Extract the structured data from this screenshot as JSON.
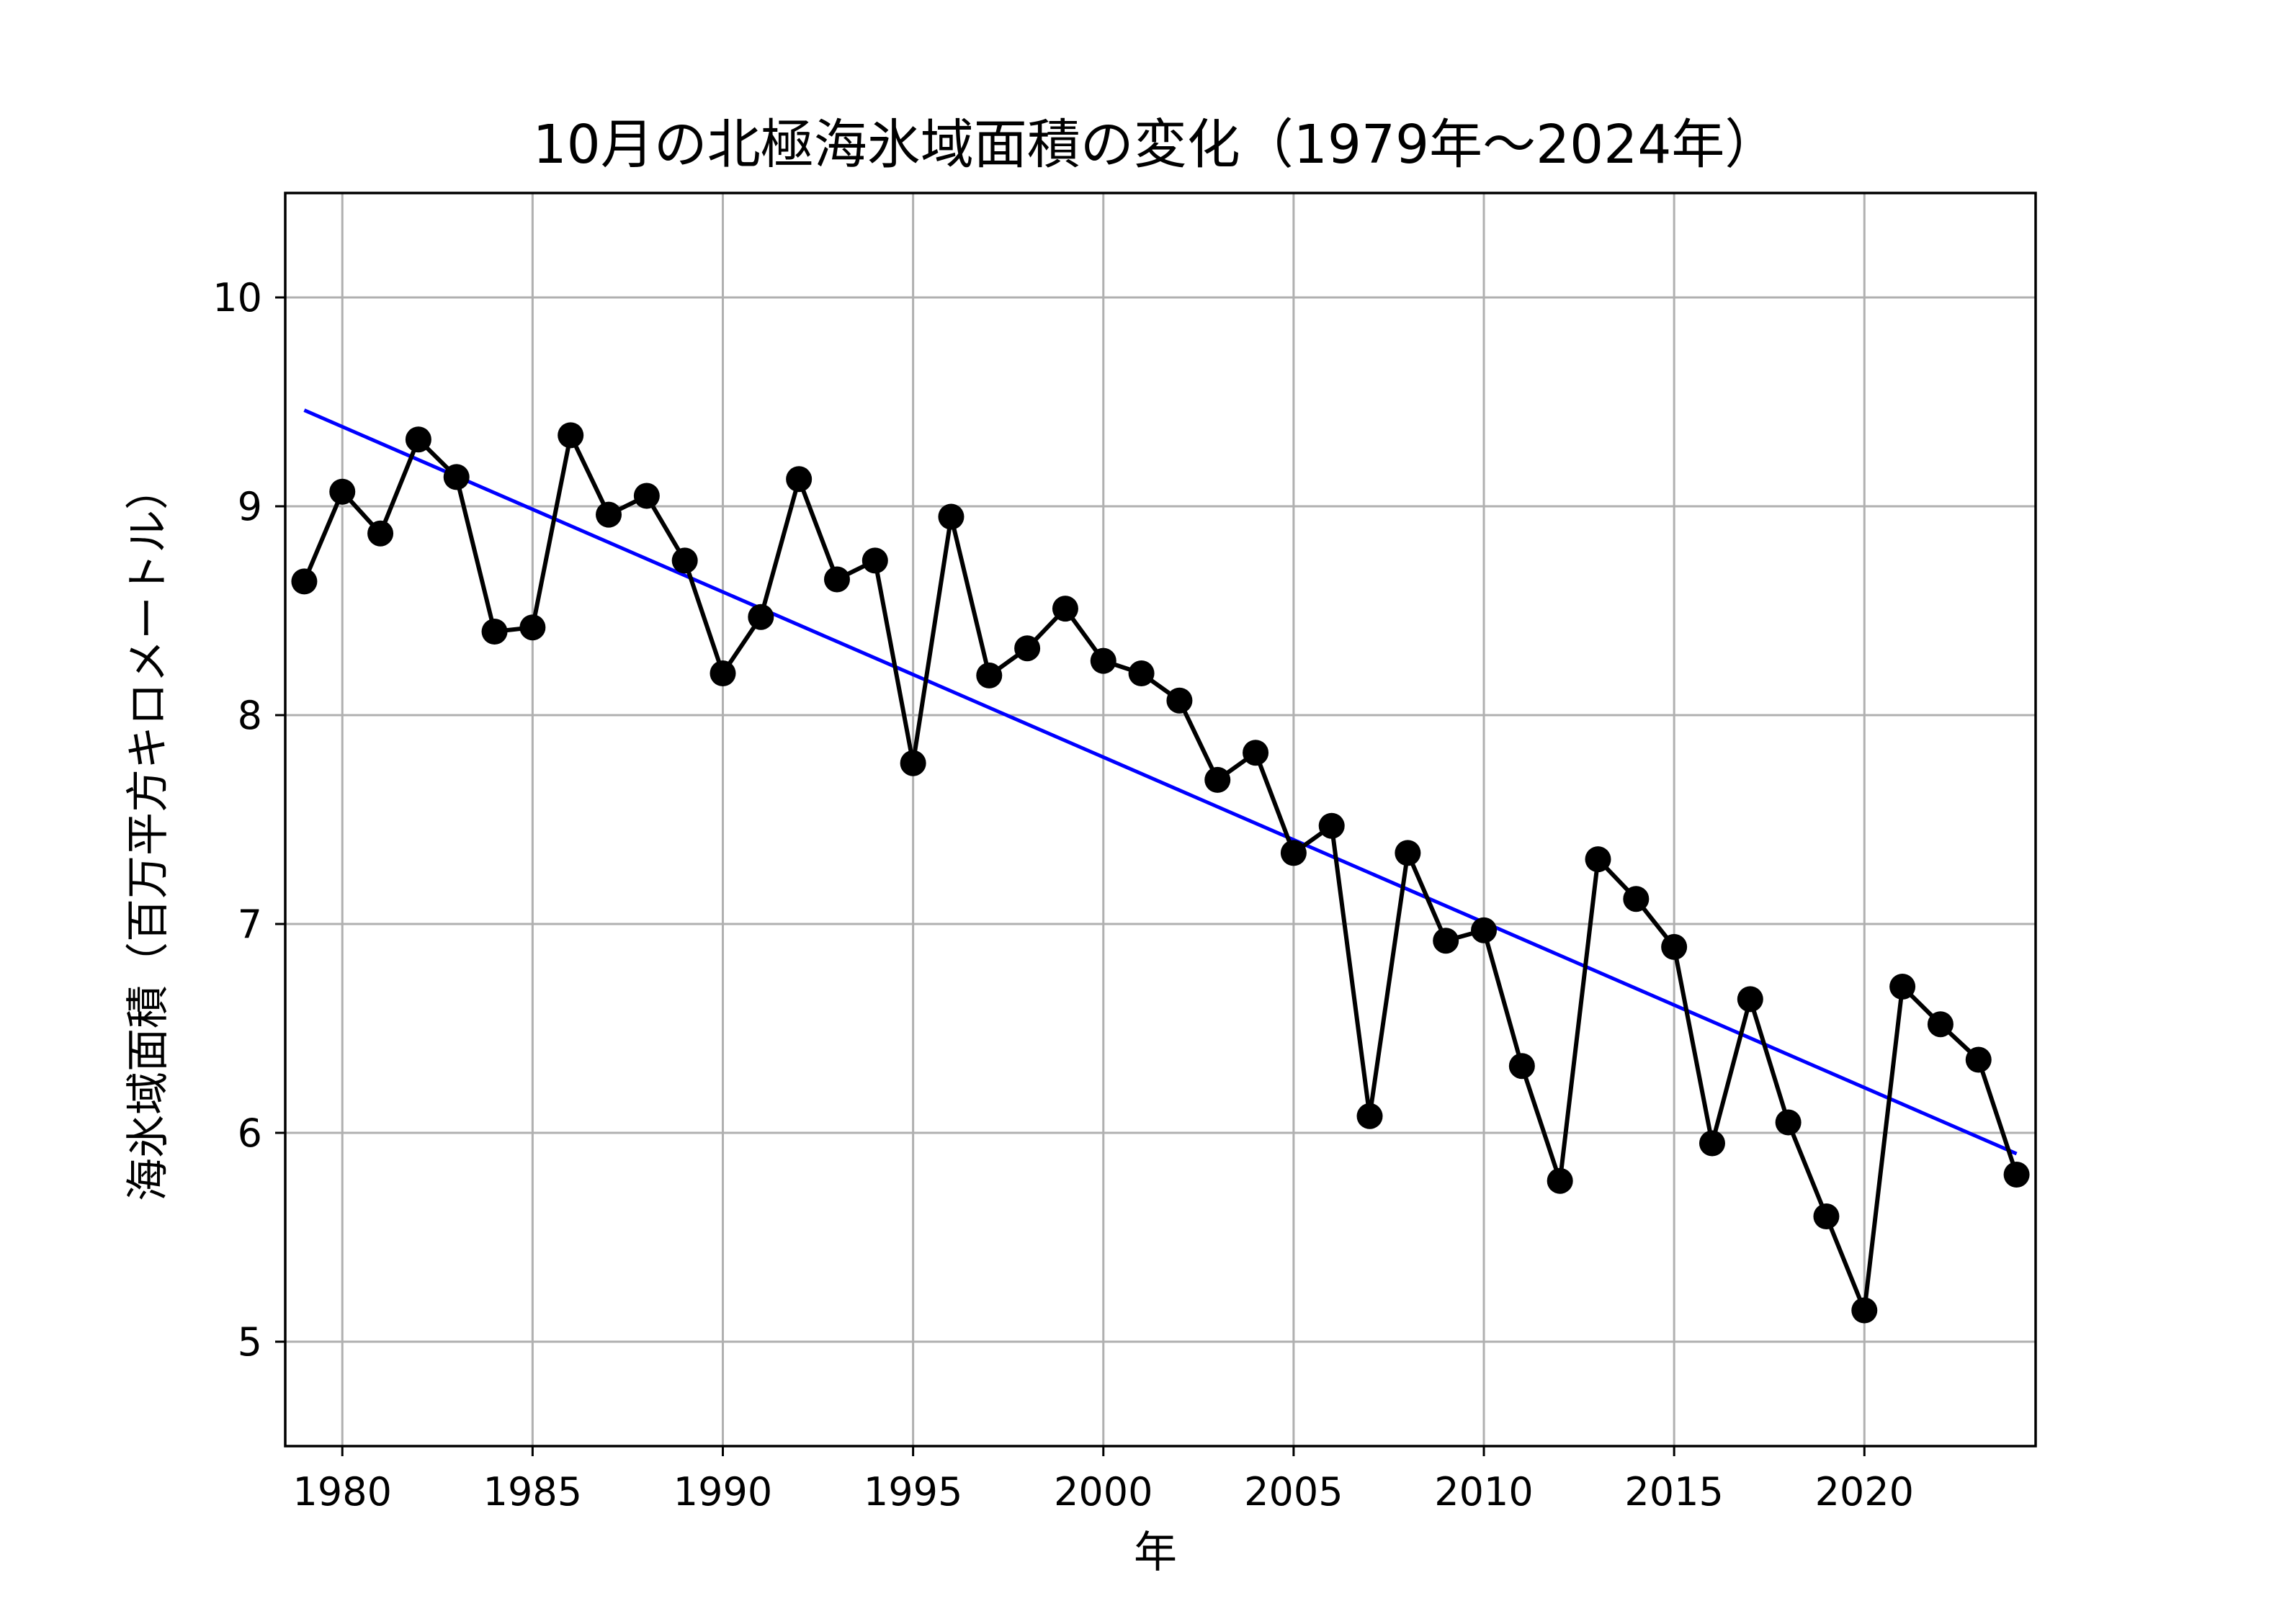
{
  "chart_data": {
    "type": "line",
    "title": "10月の北極海氷域面積の変化（1979年～2024年）",
    "xlabel": "年",
    "ylabel": "海氷域面積（百万平方キロメートル）",
    "xlim": [
      1978.5,
      2024.5
    ],
    "ylim": [
      4.5,
      10.5
    ],
    "x_ticks": [
      "1980",
      "1985",
      "1990",
      "1995",
      "2000",
      "2005",
      "2010",
      "2015",
      "2020"
    ],
    "y_ticks": [
      "5",
      "6",
      "7",
      "8",
      "9",
      "10"
    ],
    "grid": true,
    "series": [
      {
        "marker": "circle",
        "color": "#000000",
        "x": [
          1979,
          1980,
          1981,
          1982,
          1983,
          1984,
          1985,
          1986,
          1987,
          1988,
          1989,
          1990,
          1991,
          1992,
          1993,
          1994,
          1995,
          1996,
          1997,
          1998,
          1999,
          2000,
          2001,
          2002,
          2003,
          2004,
          2005,
          2006,
          2007,
          2008,
          2009,
          2010,
          2011,
          2012,
          2013,
          2014,
          2015,
          2016,
          2017,
          2018,
          2019,
          2020,
          2021,
          2022,
          2023,
          2024
        ],
        "values": [
          8.64,
          9.07,
          8.87,
          9.32,
          9.14,
          8.4,
          8.42,
          9.34,
          8.96,
          9.05,
          8.74,
          8.2,
          8.47,
          9.13,
          8.65,
          8.74,
          7.77,
          8.95,
          8.19,
          8.32,
          8.51,
          8.26,
          8.2,
          8.07,
          7.69,
          7.82,
          7.34,
          7.47,
          6.08,
          7.34,
          6.92,
          6.97,
          6.32,
          5.77,
          7.31,
          7.12,
          6.89,
          5.95,
          6.64,
          6.05,
          5.6,
          5.15,
          6.7,
          6.52,
          6.35,
          5.8
        ]
      },
      {
        "style": "trend-line",
        "color": "#0000ff",
        "x": [
          1979,
          2024
        ],
        "values": [
          9.46,
          5.9
        ]
      }
    ]
  }
}
